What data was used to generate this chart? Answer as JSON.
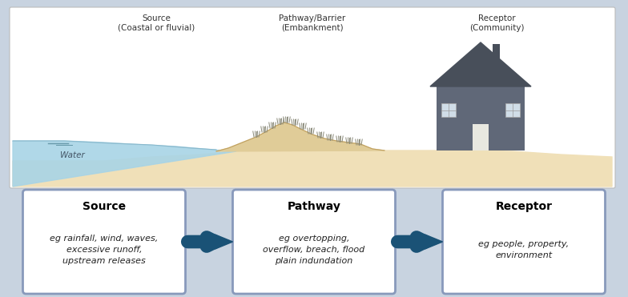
{
  "bg_color": "#c8d3e0",
  "box_bg": "#ffffff",
  "box_border": "#8899bb",
  "arrow_color": "#1a5276",
  "source_title": "Source",
  "pathway_title": "Pathway",
  "receptor_title": "Receptor",
  "source_text": "eg rainfall, wind, waves,\nexcessive runoff,\nupstream releases",
  "pathway_text": "eg overtopping,\noverflow, breach, flood\nplain indundation",
  "receptor_text": "eg people, property,\nenvironment",
  "top_source_label": "Source\n(Coastal or fluvial)",
  "top_pathway_label": "Pathway/Barrier\n(Embankment)",
  "top_receptor_label": "Receptor\n(Community)",
  "water_label": "Water",
  "water_color": "#a8d4e6",
  "sand_color": "#f0e0b8",
  "sand_color2": "#e0cc98",
  "house_color": "#606878",
  "house_dark": "#484f5a"
}
